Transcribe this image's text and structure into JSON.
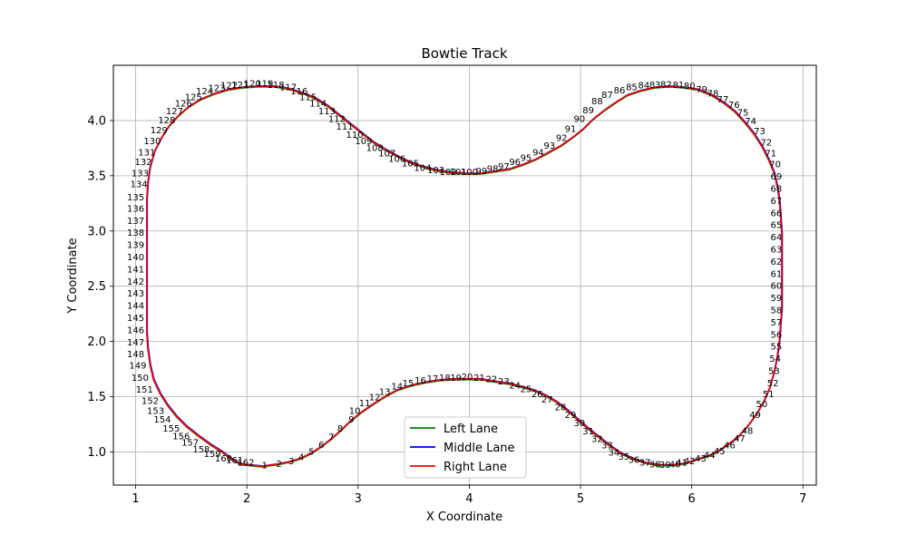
{
  "chart_data": {
    "type": "line",
    "title": "Bowtie Track",
    "xlabel": "X Coordinate",
    "ylabel": "Y Coordinate",
    "xlim": [
      0.8,
      7.12
    ],
    "ylim": [
      0.7,
      4.5
    ],
    "xticks": [
      "1",
      "2",
      "3",
      "4",
      "5",
      "6",
      "7"
    ],
    "yticks": [
      "1.0",
      "1.5",
      "2.0",
      "2.5",
      "3.0",
      "3.5",
      "4.0"
    ],
    "grid": true,
    "legend_position": "lower center",
    "colors": {
      "Left Lane": "#008000",
      "Middle Lane": "#0000ff",
      "Right Lane": "#ff0000"
    },
    "series": [
      {
        "name": "Left Lane"
      },
      {
        "name": "Middle Lane"
      },
      {
        "name": "Right Lane"
      }
    ],
    "centerline": [
      [
        1.94,
        0.89
      ],
      [
        2.14,
        0.87
      ],
      [
        2.28,
        0.89
      ],
      [
        2.38,
        0.91
      ],
      [
        2.48,
        0.94
      ],
      [
        2.58,
        0.99
      ],
      [
        2.67,
        1.05
      ],
      [
        2.76,
        1.12
      ],
      [
        2.85,
        1.2
      ],
      [
        2.93,
        1.28
      ],
      [
        3.03,
        1.36
      ],
      [
        3.13,
        1.43
      ],
      [
        3.24,
        1.5
      ],
      [
        3.35,
        1.56
      ],
      [
        3.47,
        1.6
      ],
      [
        3.6,
        1.63
      ],
      [
        3.73,
        1.65
      ],
      [
        3.86,
        1.66
      ],
      [
        3.98,
        1.66
      ],
      [
        4.1,
        1.66
      ],
      [
        4.22,
        1.64
      ],
      [
        4.35,
        1.62
      ],
      [
        4.47,
        1.59
      ],
      [
        4.58,
        1.56
      ],
      [
        4.69,
        1.51
      ],
      [
        4.79,
        1.45
      ],
      [
        4.88,
        1.38
      ],
      [
        4.97,
        1.3
      ],
      [
        5.06,
        1.22
      ],
      [
        5.16,
        1.14
      ],
      [
        5.26,
        1.06
      ],
      [
        5.36,
        0.99
      ],
      [
        5.47,
        0.94
      ],
      [
        5.59,
        0.9
      ],
      [
        5.71,
        0.88
      ],
      [
        5.83,
        0.88
      ],
      [
        5.95,
        0.9
      ],
      [
        6.07,
        0.94
      ],
      [
        6.19,
        0.98
      ],
      [
        6.3,
        1.05
      ],
      [
        6.41,
        1.13
      ],
      [
        6.5,
        1.23
      ],
      [
        6.58,
        1.34
      ],
      [
        6.65,
        1.46
      ],
      [
        6.7,
        1.58
      ],
      [
        6.74,
        1.72
      ],
      [
        6.77,
        1.87
      ],
      [
        6.79,
        2.02
      ],
      [
        6.8,
        2.17
      ],
      [
        6.81,
        2.3
      ],
      [
        6.81,
        2.44
      ],
      [
        6.81,
        2.57
      ],
      [
        6.81,
        2.7
      ],
      [
        6.81,
        2.84
      ],
      [
        6.81,
        2.98
      ],
      [
        6.8,
        3.12
      ],
      [
        6.79,
        3.26
      ],
      [
        6.77,
        3.4
      ],
      [
        6.74,
        3.53
      ],
      [
        6.69,
        3.65
      ],
      [
        6.63,
        3.77
      ],
      [
        6.56,
        3.88
      ],
      [
        6.48,
        3.98
      ],
      [
        6.39,
        4.08
      ],
      [
        6.29,
        4.16
      ],
      [
        6.18,
        4.23
      ],
      [
        6.06,
        4.28
      ],
      [
        5.93,
        4.3
      ],
      [
        5.8,
        4.31
      ],
      [
        5.67,
        4.3
      ],
      [
        5.54,
        4.27
      ],
      [
        5.42,
        4.23
      ],
      [
        5.31,
        4.16
      ],
      [
        5.21,
        4.09
      ],
      [
        5.11,
        4.01
      ],
      [
        5.02,
        3.92
      ],
      [
        4.92,
        3.84
      ],
      [
        4.82,
        3.77
      ],
      [
        4.71,
        3.71
      ],
      [
        4.6,
        3.65
      ],
      [
        4.48,
        3.6
      ],
      [
        4.36,
        3.56
      ],
      [
        4.23,
        3.54
      ],
      [
        4.1,
        3.52
      ],
      [
        3.97,
        3.52
      ],
      [
        3.84,
        3.53
      ],
      [
        3.71,
        3.55
      ],
      [
        3.59,
        3.58
      ],
      [
        3.47,
        3.62
      ],
      [
        3.35,
        3.68
      ],
      [
        3.24,
        3.74
      ],
      [
        3.13,
        3.81
      ],
      [
        3.03,
        3.89
      ],
      [
        2.93,
        3.97
      ],
      [
        2.83,
        4.05
      ],
      [
        2.73,
        4.13
      ],
      [
        2.62,
        4.2
      ],
      [
        2.5,
        4.25
      ],
      [
        2.37,
        4.29
      ],
      [
        2.24,
        4.31
      ],
      [
        2.1,
        4.31
      ],
      [
        1.96,
        4.3
      ],
      [
        1.83,
        4.28
      ],
      [
        1.7,
        4.24
      ],
      [
        1.58,
        4.19
      ],
      [
        1.47,
        4.12
      ],
      [
        1.38,
        4.04
      ],
      [
        1.3,
        3.95
      ],
      [
        1.23,
        3.84
      ],
      [
        1.17,
        3.72
      ],
      [
        1.13,
        3.58
      ],
      [
        1.11,
        3.44
      ],
      [
        1.1,
        3.29
      ],
      [
        1.1,
        3.14
      ],
      [
        1.1,
        2.99
      ],
      [
        1.1,
        2.84
      ],
      [
        1.1,
        2.69
      ],
      [
        1.1,
        2.54
      ],
      [
        1.1,
        2.39
      ],
      [
        1.1,
        2.24
      ],
      [
        1.1,
        2.09
      ],
      [
        1.11,
        1.94
      ],
      [
        1.13,
        1.79
      ],
      [
        1.16,
        1.66
      ],
      [
        1.22,
        1.53
      ],
      [
        1.29,
        1.42
      ],
      [
        1.37,
        1.32
      ],
      [
        1.46,
        1.23
      ],
      [
        1.56,
        1.15
      ],
      [
        1.67,
        1.07
      ],
      [
        1.78,
        1.0
      ],
      [
        1.86,
        0.94
      ],
      [
        1.94,
        0.89
      ]
    ],
    "annotations": [
      {
        "text": "1",
        "x": 2.16,
        "y": 0.875
      },
      {
        "text": "2",
        "x": 2.29,
        "y": 0.89
      },
      {
        "text": "3",
        "x": 2.4,
        "y": 0.915
      },
      {
        "text": "4",
        "x": 2.49,
        "y": 0.95
      },
      {
        "text": "5",
        "x": 2.58,
        "y": 1.0
      },
      {
        "text": "6",
        "x": 2.67,
        "y": 1.06
      },
      {
        "text": "7",
        "x": 2.76,
        "y": 1.13
      },
      {
        "text": "8",
        "x": 2.84,
        "y": 1.21
      },
      {
        "text": "9",
        "x": 2.94,
        "y": 1.29
      },
      {
        "text": "10",
        "x": 2.97,
        "y": 1.37
      },
      {
        "text": "11",
        "x": 3.06,
        "y": 1.44
      },
      {
        "text": "12",
        "x": 3.15,
        "y": 1.49
      },
      {
        "text": "13",
        "x": 3.24,
        "y": 1.54
      },
      {
        "text": "14",
        "x": 3.35,
        "y": 1.59
      },
      {
        "text": "15",
        "x": 3.45,
        "y": 1.62
      },
      {
        "text": "16",
        "x": 3.56,
        "y": 1.645
      },
      {
        "text": "17",
        "x": 3.67,
        "y": 1.66
      },
      {
        "text": "18",
        "x": 3.78,
        "y": 1.67
      },
      {
        "text": "19",
        "x": 3.88,
        "y": 1.67
      },
      {
        "text": "20",
        "x": 3.98,
        "y": 1.675
      },
      {
        "text": "21",
        "x": 4.09,
        "y": 1.67
      },
      {
        "text": "22",
        "x": 4.2,
        "y": 1.655
      },
      {
        "text": "23",
        "x": 4.31,
        "y": 1.635
      },
      {
        "text": "24",
        "x": 4.41,
        "y": 1.6
      },
      {
        "text": "25",
        "x": 4.51,
        "y": 1.565
      },
      {
        "text": "26",
        "x": 4.61,
        "y": 1.52
      },
      {
        "text": "27",
        "x": 4.7,
        "y": 1.47
      },
      {
        "text": "28",
        "x": 4.82,
        "y": 1.4
      },
      {
        "text": "29",
        "x": 4.91,
        "y": 1.33
      },
      {
        "text": "30",
        "x": 4.99,
        "y": 1.26
      },
      {
        "text": "31",
        "x": 5.07,
        "y": 1.185
      },
      {
        "text": "32",
        "x": 5.15,
        "y": 1.115
      },
      {
        "text": "33",
        "x": 5.24,
        "y": 1.055
      },
      {
        "text": "34",
        "x": 5.3,
        "y": 0.99
      },
      {
        "text": "35",
        "x": 5.39,
        "y": 0.955
      },
      {
        "text": "36",
        "x": 5.48,
        "y": 0.925
      },
      {
        "text": "37",
        "x": 5.58,
        "y": 0.9
      },
      {
        "text": "38",
        "x": 5.67,
        "y": 0.885
      },
      {
        "text": "39",
        "x": 5.76,
        "y": 0.88
      },
      {
        "text": "40",
        "x": 5.85,
        "y": 0.885
      },
      {
        "text": "41",
        "x": 5.91,
        "y": 0.9
      },
      {
        "text": "42",
        "x": 5.98,
        "y": 0.915
      },
      {
        "text": "43",
        "x": 6.08,
        "y": 0.94
      },
      {
        "text": "44",
        "x": 6.16,
        "y": 0.965
      },
      {
        "text": "45",
        "x": 6.25,
        "y": 1.005
      },
      {
        "text": "46",
        "x": 6.34,
        "y": 1.055
      },
      {
        "text": "47",
        "x": 6.43,
        "y": 1.12
      },
      {
        "text": "48",
        "x": 6.5,
        "y": 1.19
      },
      {
        "text": "49",
        "x": 6.57,
        "y": 1.33
      },
      {
        "text": "50",
        "x": 6.63,
        "y": 1.43
      },
      {
        "text": "51",
        "x": 6.69,
        "y": 1.52
      },
      {
        "text": "52",
        "x": 6.73,
        "y": 1.62
      },
      {
        "text": "53",
        "x": 6.74,
        "y": 1.73
      },
      {
        "text": "54",
        "x": 6.75,
        "y": 1.84
      },
      {
        "text": "55",
        "x": 6.76,
        "y": 1.95
      },
      {
        "text": "56",
        "x": 6.76,
        "y": 2.06
      },
      {
        "text": "57",
        "x": 6.76,
        "y": 2.17
      },
      {
        "text": "58",
        "x": 6.76,
        "y": 2.28
      },
      {
        "text": "59",
        "x": 6.76,
        "y": 2.39
      },
      {
        "text": "60",
        "x": 6.76,
        "y": 2.5
      },
      {
        "text": "61",
        "x": 6.76,
        "y": 2.61
      },
      {
        "text": "62",
        "x": 6.76,
        "y": 2.72
      },
      {
        "text": "63",
        "x": 6.76,
        "y": 2.83
      },
      {
        "text": "64",
        "x": 6.76,
        "y": 2.94
      },
      {
        "text": "65",
        "x": 6.76,
        "y": 3.05
      },
      {
        "text": "66",
        "x": 6.76,
        "y": 3.16
      },
      {
        "text": "67",
        "x": 6.76,
        "y": 3.27
      },
      {
        "text": "68",
        "x": 6.76,
        "y": 3.38
      },
      {
        "text": "69",
        "x": 6.76,
        "y": 3.49
      },
      {
        "text": "70",
        "x": 6.75,
        "y": 3.6
      },
      {
        "text": "71",
        "x": 6.71,
        "y": 3.7
      },
      {
        "text": "72",
        "x": 6.67,
        "y": 3.8
      },
      {
        "text": "73",
        "x": 6.61,
        "y": 3.9
      },
      {
        "text": "74",
        "x": 6.53,
        "y": 3.99
      },
      {
        "text": "75",
        "x": 6.46,
        "y": 4.07
      },
      {
        "text": "76",
        "x": 6.38,
        "y": 4.14
      },
      {
        "text": "77",
        "x": 6.28,
        "y": 4.19
      },
      {
        "text": "78",
        "x": 6.19,
        "y": 4.24
      },
      {
        "text": "79",
        "x": 6.09,
        "y": 4.28
      },
      {
        "text": "80",
        "x": 5.98,
        "y": 4.31
      },
      {
        "text": "81",
        "x": 5.88,
        "y": 4.32
      },
      {
        "text": "82",
        "x": 5.77,
        "y": 4.325
      },
      {
        "text": "83",
        "x": 5.67,
        "y": 4.32
      },
      {
        "text": "84",
        "x": 5.57,
        "y": 4.315
      },
      {
        "text": "85",
        "x": 5.46,
        "y": 4.3
      },
      {
        "text": "86",
        "x": 5.35,
        "y": 4.27
      },
      {
        "text": "87",
        "x": 5.24,
        "y": 4.23
      },
      {
        "text": "88",
        "x": 5.15,
        "y": 4.17
      },
      {
        "text": "89",
        "x": 5.07,
        "y": 4.09
      },
      {
        "text": "90",
        "x": 4.99,
        "y": 4.01
      },
      {
        "text": "91",
        "x": 4.91,
        "y": 3.92
      },
      {
        "text": "92",
        "x": 4.83,
        "y": 3.84
      },
      {
        "text": "93",
        "x": 4.72,
        "y": 3.77
      },
      {
        "text": "94",
        "x": 4.62,
        "y": 3.71
      },
      {
        "text": "95",
        "x": 4.51,
        "y": 3.66
      },
      {
        "text": "96",
        "x": 4.41,
        "y": 3.62
      },
      {
        "text": "97",
        "x": 4.31,
        "y": 3.58
      },
      {
        "text": "98",
        "x": 4.21,
        "y": 3.56
      },
      {
        "text": "99",
        "x": 4.11,
        "y": 3.54
      },
      {
        "text": "100",
        "x": 4.0,
        "y": 3.53
      },
      {
        "text": "101",
        "x": 3.9,
        "y": 3.53
      },
      {
        "text": "102",
        "x": 3.81,
        "y": 3.53
      },
      {
        "text": "103",
        "x": 3.7,
        "y": 3.55
      },
      {
        "text": "104",
        "x": 3.58,
        "y": 3.57
      },
      {
        "text": "105",
        "x": 3.47,
        "y": 3.61
      },
      {
        "text": "106",
        "x": 3.35,
        "y": 3.65
      },
      {
        "text": "107",
        "x": 3.26,
        "y": 3.7
      },
      {
        "text": "108",
        "x": 3.15,
        "y": 3.75
      },
      {
        "text": "109",
        "x": 3.05,
        "y": 3.81
      },
      {
        "text": "110",
        "x": 2.97,
        "y": 3.87
      },
      {
        "text": "111",
        "x": 2.88,
        "y": 3.94
      },
      {
        "text": "112",
        "x": 2.81,
        "y": 4.01
      },
      {
        "text": "113",
        "x": 2.72,
        "y": 4.08
      },
      {
        "text": "114",
        "x": 2.64,
        "y": 4.15
      },
      {
        "text": "115",
        "x": 2.55,
        "y": 4.21
      },
      {
        "text": "116",
        "x": 2.47,
        "y": 4.26
      },
      {
        "text": "117",
        "x": 2.37,
        "y": 4.3
      },
      {
        "text": "118",
        "x": 2.26,
        "y": 4.32
      },
      {
        "text": "119",
        "x": 2.16,
        "y": 4.33
      },
      {
        "text": "120",
        "x": 2.05,
        "y": 4.33
      },
      {
        "text": "121",
        "x": 1.94,
        "y": 4.32
      },
      {
        "text": "122",
        "x": 1.84,
        "y": 4.315
      },
      {
        "text": "123",
        "x": 1.73,
        "y": 4.29
      },
      {
        "text": "124",
        "x": 1.62,
        "y": 4.26
      },
      {
        "text": "125",
        "x": 1.52,
        "y": 4.21
      },
      {
        "text": "126",
        "x": 1.43,
        "y": 4.15
      },
      {
        "text": "127",
        "x": 1.35,
        "y": 4.08
      },
      {
        "text": "128",
        "x": 1.28,
        "y": 4.0
      },
      {
        "text": "129",
        "x": 1.21,
        "y": 3.91
      },
      {
        "text": "130",
        "x": 1.15,
        "y": 3.81
      },
      {
        "text": "131",
        "x": 1.1,
        "y": 3.71
      },
      {
        "text": "132",
        "x": 1.07,
        "y": 3.62
      },
      {
        "text": "133",
        "x": 1.04,
        "y": 3.52
      },
      {
        "text": "134",
        "x": 1.03,
        "y": 3.42
      },
      {
        "text": "135",
        "x": 1.0,
        "y": 3.3
      },
      {
        "text": "136",
        "x": 1.0,
        "y": 3.2
      },
      {
        "text": "137",
        "x": 1.0,
        "y": 3.09
      },
      {
        "text": "138",
        "x": 1.0,
        "y": 2.98
      },
      {
        "text": "139",
        "x": 1.0,
        "y": 2.87
      },
      {
        "text": "140",
        "x": 1.0,
        "y": 2.76
      },
      {
        "text": "141",
        "x": 1.0,
        "y": 2.65
      },
      {
        "text": "142",
        "x": 1.0,
        "y": 2.54
      },
      {
        "text": "143",
        "x": 1.0,
        "y": 2.43
      },
      {
        "text": "144",
        "x": 1.0,
        "y": 2.32
      },
      {
        "text": "145",
        "x": 1.0,
        "y": 2.21
      },
      {
        "text": "146",
        "x": 1.0,
        "y": 2.1
      },
      {
        "text": "147",
        "x": 1.0,
        "y": 1.99
      },
      {
        "text": "148",
        "x": 1.0,
        "y": 1.88
      },
      {
        "text": "149",
        "x": 1.02,
        "y": 1.78
      },
      {
        "text": "150",
        "x": 1.04,
        "y": 1.67
      },
      {
        "text": "151",
        "x": 1.08,
        "y": 1.56
      },
      {
        "text": "152",
        "x": 1.13,
        "y": 1.46
      },
      {
        "text": "153",
        "x": 1.18,
        "y": 1.37
      },
      {
        "text": "154",
        "x": 1.24,
        "y": 1.29
      },
      {
        "text": "155",
        "x": 1.32,
        "y": 1.21
      },
      {
        "text": "156",
        "x": 1.41,
        "y": 1.14
      },
      {
        "text": "157",
        "x": 1.49,
        "y": 1.08
      },
      {
        "text": "158",
        "x": 1.59,
        "y": 1.02
      },
      {
        "text": "159",
        "x": 1.69,
        "y": 0.98
      },
      {
        "text": "160",
        "x": 1.79,
        "y": 0.94
      },
      {
        "text": "161",
        "x": 1.89,
        "y": 0.92
      },
      {
        "text": "162",
        "x": 1.99,
        "y": 0.9
      }
    ]
  }
}
